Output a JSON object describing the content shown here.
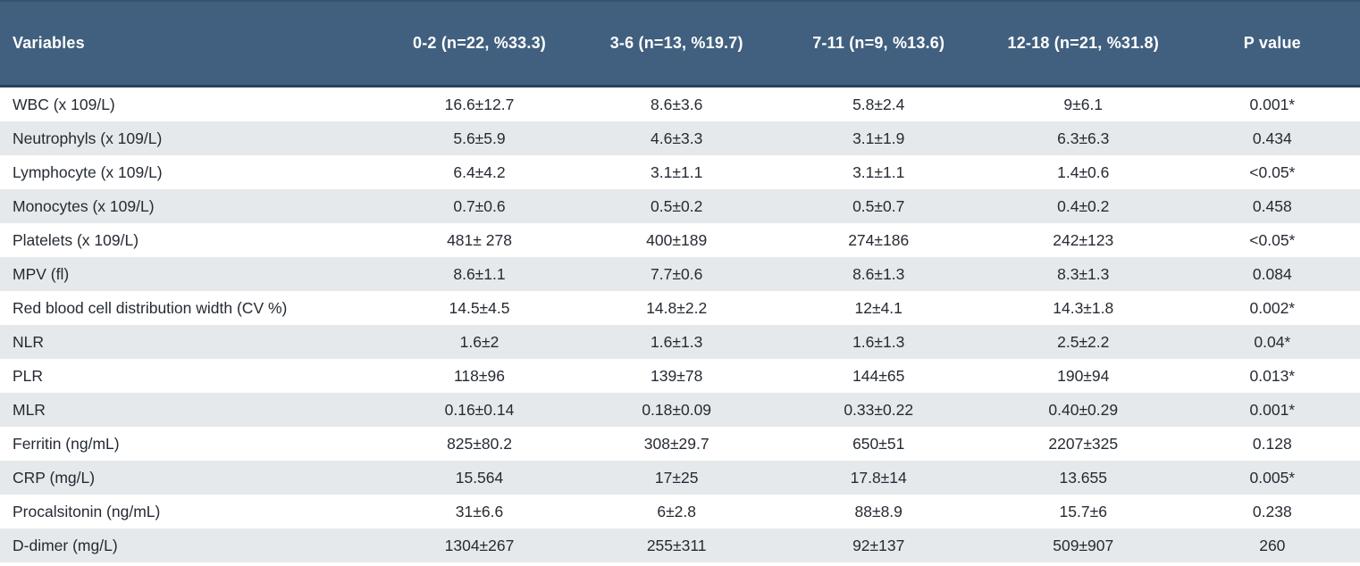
{
  "colors": {
    "header_background": "#41607f",
    "header_top_edge": "#35526e",
    "header_bottom_border": "#2b4158",
    "header_text": "#ffffff",
    "row_background": "#ffffff",
    "row_stripe": "#e5e9ec",
    "body_text": "#262b33"
  },
  "table": {
    "columns": [
      "Variables",
      "0-2 (n=22, %33.3)",
      "3-6 (n=13, %19.7)",
      "7-11 (n=9, %13.6)",
      "12-18 (n=21, %31.8)",
      "P value"
    ],
    "rows": [
      {
        "variable": "WBC (x 109/L)",
        "values": [
          "16.6±12.7",
          "8.6±3.6",
          "5.8±2.4",
          "9±6.1",
          "0.001*"
        ]
      },
      {
        "variable": "Neutrophyls (x 109/L)",
        "values": [
          "5.6±5.9",
          "4.6±3.3",
          "3.1±1.9",
          "6.3±6.3",
          "0.434"
        ]
      },
      {
        "variable": "Lymphocyte (x 109/L)",
        "values": [
          "6.4±4.2",
          "3.1±1.1",
          "3.1±1.1",
          "1.4±0.6",
          "<0.05*"
        ]
      },
      {
        "variable": "Monocytes (x 109/L)",
        "values": [
          "0.7±0.6",
          "0.5±0.2",
          "0.5±0.7",
          "0.4±0.2",
          "0.458"
        ]
      },
      {
        "variable": "Platelets (x 109/L)",
        "values": [
          "481± 278",
          "400±189",
          "274±186",
          "242±123",
          "<0.05*"
        ]
      },
      {
        "variable": "MPV (fl)",
        "values": [
          "8.6±1.1",
          "7.7±0.6",
          "8.6±1.3",
          "8.3±1.3",
          "0.084"
        ]
      },
      {
        "variable": "Red blood cell distribution width (CV %)",
        "values": [
          "14.5±4.5",
          "14.8±2.2",
          "12±4.1",
          "14.3±1.8",
          "0.002*"
        ]
      },
      {
        "variable": "NLR",
        "values": [
          "1.6±2",
          "1.6±1.3",
          "1.6±1.3",
          "2.5±2.2",
          "0.04*"
        ]
      },
      {
        "variable": "PLR",
        "values": [
          "118±96",
          "139±78",
          "144±65",
          "190±94",
          "0.013*"
        ]
      },
      {
        "variable": "MLR",
        "values": [
          "0.16±0.14",
          "0.18±0.09",
          "0.33±0.22",
          "0.40±0.29",
          "0.001*"
        ]
      },
      {
        "variable": "Ferritin (ng/mL)",
        "values": [
          "825±80.2",
          "308±29.7",
          "650±51",
          "2207±325",
          "0.128"
        ]
      },
      {
        "variable": "CRP (mg/L)",
        "values": [
          "15.564",
          "17±25",
          "17.8±14",
          "13.655",
          "0.005*"
        ]
      },
      {
        "variable": "Procalsitonin (ng/mL)",
        "values": [
          "31±6.6",
          "6±2.8",
          "88±8.9",
          "15.7±6",
          "0.238"
        ]
      },
      {
        "variable": "D-dimer (mg/L)",
        "values": [
          "1304±267",
          "255±311",
          "92±137",
          "509±907",
          "260"
        ]
      }
    ]
  }
}
